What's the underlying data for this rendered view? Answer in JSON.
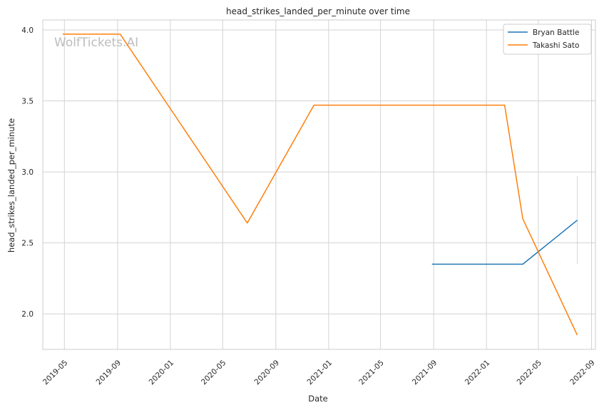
{
  "chart_data": {
    "type": "line",
    "title": "head_strikes_landed_per_minute over time",
    "xlabel": "Date",
    "ylabel": "head_strikes_landed_per_minute",
    "watermark": "WolfTickets.AI",
    "x_type": "date",
    "xlim": [
      "2019-03-12",
      "2022-09-10"
    ],
    "ylim": [
      1.75,
      4.07
    ],
    "x_ticks": [
      "2019-05-01",
      "2019-09-01",
      "2020-01-01",
      "2020-05-01",
      "2020-09-01",
      "2021-01-01",
      "2021-05-01",
      "2021-09-01",
      "2022-01-01",
      "2022-05-01",
      "2022-09-01"
    ],
    "x_tick_labels": [
      "2019-05",
      "2019-09",
      "2020-01",
      "2020-05",
      "2020-09",
      "2021-01",
      "2021-05",
      "2021-09",
      "2022-01",
      "2022-05",
      "2022-09"
    ],
    "y_ticks": [
      2.0,
      2.5,
      3.0,
      3.5,
      4.0
    ],
    "y_tick_labels": [
      "2.0",
      "2.5",
      "3.0",
      "3.5",
      "4.0"
    ],
    "grid": true,
    "legend_position": "top-right",
    "series": [
      {
        "name": "Bryan Battle",
        "color": "#1f77b4",
        "points": [
          {
            "x": "2021-08-28",
            "y": 2.35
          },
          {
            "x": "2022-03-26",
            "y": 2.35
          },
          {
            "x": "2022-07-30",
            "y": 2.66
          }
        ],
        "error_band": {
          "x": "2022-07-30",
          "low": 2.35,
          "high": 2.97
        }
      },
      {
        "name": "Takashi Sato",
        "color": "#ff7f0e",
        "points": [
          {
            "x": "2019-04-27",
            "y": 3.97
          },
          {
            "x": "2019-09-07",
            "y": 3.97
          },
          {
            "x": "2020-06-27",
            "y": 2.64
          },
          {
            "x": "2020-11-28",
            "y": 3.47
          },
          {
            "x": "2022-02-12",
            "y": 3.47
          },
          {
            "x": "2022-03-26",
            "y": 2.67
          },
          {
            "x": "2022-07-30",
            "y": 1.85
          }
        ]
      }
    ]
  }
}
